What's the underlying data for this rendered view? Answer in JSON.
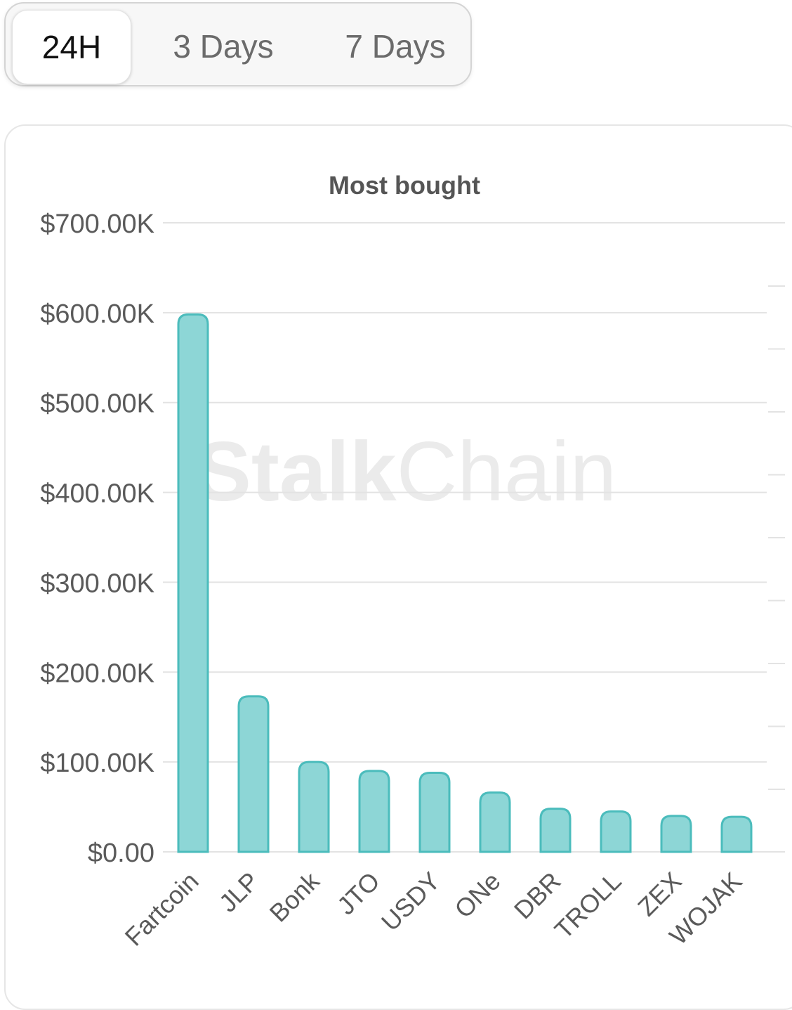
{
  "tabs": [
    {
      "label": "24H",
      "active": true
    },
    {
      "label": "3 Days",
      "active": false
    },
    {
      "label": "7 Days",
      "active": false
    }
  ],
  "watermark": {
    "bold": "Stalk",
    "light": "Chain"
  },
  "chart_data": {
    "type": "bar",
    "title": "Most bought",
    "xlabel": "",
    "ylabel": "",
    "categories": [
      "Fartcoin",
      "JLP",
      "Bonk",
      "JTO",
      "USDY",
      "ONe",
      "DBR",
      "TROLL",
      "ZEX",
      "WOJAK"
    ],
    "values": [
      598000,
      173000,
      100000,
      90000,
      88000,
      66000,
      48000,
      45000,
      40000,
      39000
    ],
    "ylim": [
      0,
      700000
    ],
    "yticks": [
      {
        "value": 700000,
        "label": "$700.00K"
      },
      {
        "value": 600000,
        "label": "$600.00K"
      },
      {
        "value": 500000,
        "label": "$500.00K"
      },
      {
        "value": 400000,
        "label": "$400.00K"
      },
      {
        "value": 300000,
        "label": "$300.00K"
      },
      {
        "value": 200000,
        "label": "$200.00K"
      },
      {
        "value": 100000,
        "label": "$100.00K"
      },
      {
        "value": 0,
        "label": "$0.00"
      }
    ],
    "grid": true,
    "colors": {
      "bar_fill": "#8dd6d6",
      "bar_stroke": "#4bbcbc",
      "grid": "#e3e3e3",
      "tick_text": "#5a5a5a",
      "title": "#555555"
    }
  }
}
